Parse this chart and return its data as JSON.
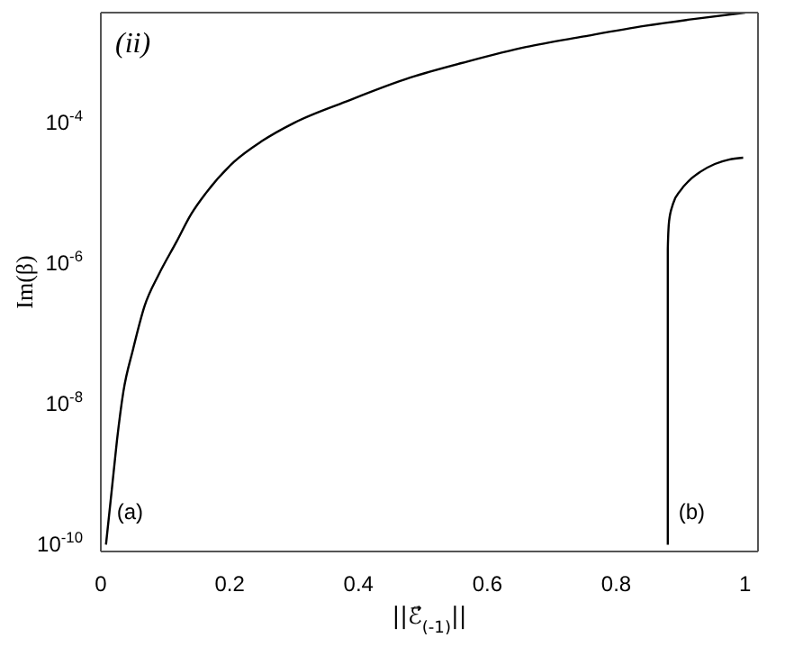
{
  "chart_data": {
    "type": "line",
    "xlabel": "||ℰ⃗$_{(-1)}$||",
    "ylabel": "Im(β)",
    "annotations": [
      "(ii)"
    ],
    "log": "y",
    "xlim": [
      0,
      1.02
    ],
    "xticks": [
      0,
      0.2,
      0.4,
      0.6,
      0.8,
      1
    ],
    "ylim": [
      8e-11,
      0.0037
    ],
    "yticks": [
      {
        "value": 1e-10,
        "label": "10$^{-10}$"
      },
      {
        "value": 1e-08,
        "label": "10$^{-8}$"
      },
      {
        "value": 1e-06,
        "label": "10$^{-6}$"
      },
      {
        "value": 0.0001,
        "label": "10$^{-4}$"
      }
    ],
    "marker": "none",
    "line_style": "solid",
    "series": [
      {
        "name": "(a)",
        "color": "#000000",
        "x": [
          0.008,
          0.017,
          0.025,
          0.035,
          0.05,
          0.068,
          0.09,
          0.117,
          0.14,
          0.163,
          0.207,
          0.25,
          0.3,
          0.38,
          0.48,
          0.57,
          0.66,
          0.75,
          0.845,
          0.92,
          1.0
        ],
        "values": [
          1e-10,
          6e-10,
          3e-09,
          1.5e-08,
          6e-08,
          2.5e-07,
          7e-07,
          2e-06,
          5e-06,
          1e-05,
          2.8e-05,
          5.5e-05,
          0.0001,
          0.0002,
          0.00044,
          0.00075,
          0.0012,
          0.0017,
          0.0024,
          0.003,
          0.0037
        ]
      },
      {
        "name": "(b)",
        "color": "#000000",
        "x": [
          0.88,
          0.88,
          0.882,
          0.888,
          0.9,
          0.916,
          0.93,
          0.953,
          0.975,
          0.997
        ],
        "values": [
          1e-10,
          1.6e-06,
          4e-06,
          7e-06,
          1.1e-05,
          1.6e-05,
          2e-05,
          2.6e-05,
          3e-05,
          3.2e-05
        ]
      }
    ]
  }
}
